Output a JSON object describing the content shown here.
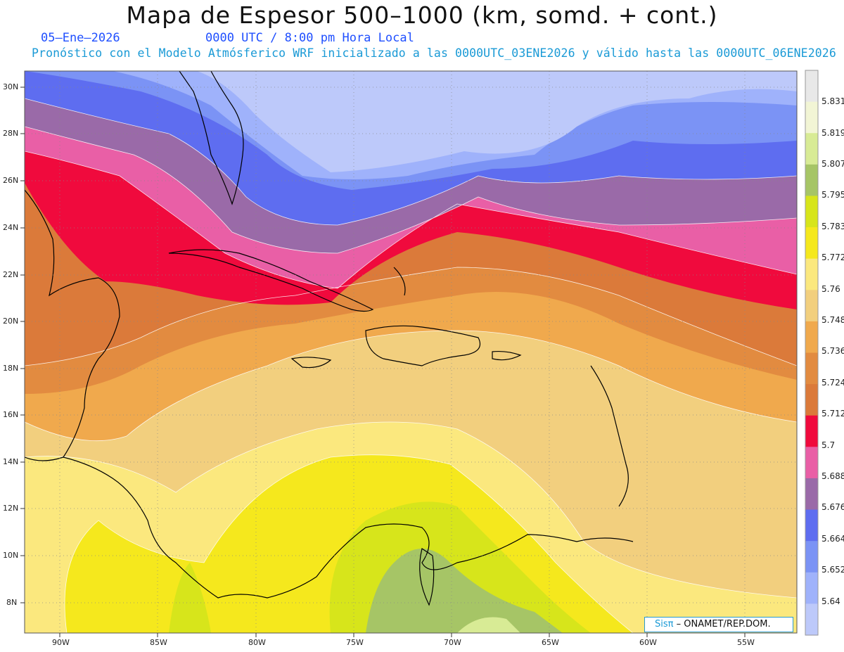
{
  "header": {
    "title": "Mapa de Espesor 500–1000 (km, somd. + cont.)",
    "date": "05–Ene–2026",
    "time": "0000 UTC / 8:00 pm Hora Local",
    "forecast_note": "Pronóstico con el Modelo Atmósferico WRF inicializado a las 0000UTC_03ENE2026 y válido hasta las  0000UTC_06ENE2026"
  },
  "map": {
    "lat_labels": [
      "30N",
      "28N",
      "26N",
      "24N",
      "22N",
      "20N",
      "18N",
      "16N",
      "14N",
      "12N",
      "10N",
      "8N"
    ],
    "lon_labels": [
      "90W",
      "85W",
      "80W",
      "75W",
      "70W",
      "65W",
      "60W",
      "55W"
    ],
    "lat_range": [
      7,
      30.7
    ],
    "lon_range": [
      92,
      53
    ],
    "grid": "dotted"
  },
  "colorbar": {
    "levels": [
      "5.831",
      "5.819",
      "5.807",
      "5.795",
      "5.783",
      "5.772",
      "5.76",
      "5.748",
      "5.736",
      "5.724",
      "5.712",
      "5.7",
      "5.688",
      "5.676",
      "5.664",
      "5.652",
      "5.64"
    ],
    "colors": [
      "#e8e8e8",
      "#f2f5d5",
      "#d8eb95",
      "#a6c566",
      "#d7e51b",
      "#f5e81d",
      "#fbe87e",
      "#f2cf7e",
      "#f0a94d",
      "#e28b40",
      "#db7a3a",
      "#f00a3d",
      "#e95fa6",
      "#9a6aa8",
      "#5e6df0",
      "#7b93f5",
      "#9fb2fb",
      "#bdc9fa"
    ]
  },
  "credit": {
    "logo": "Sisπ",
    "text": " – ONAMET/REP.DOM."
  }
}
